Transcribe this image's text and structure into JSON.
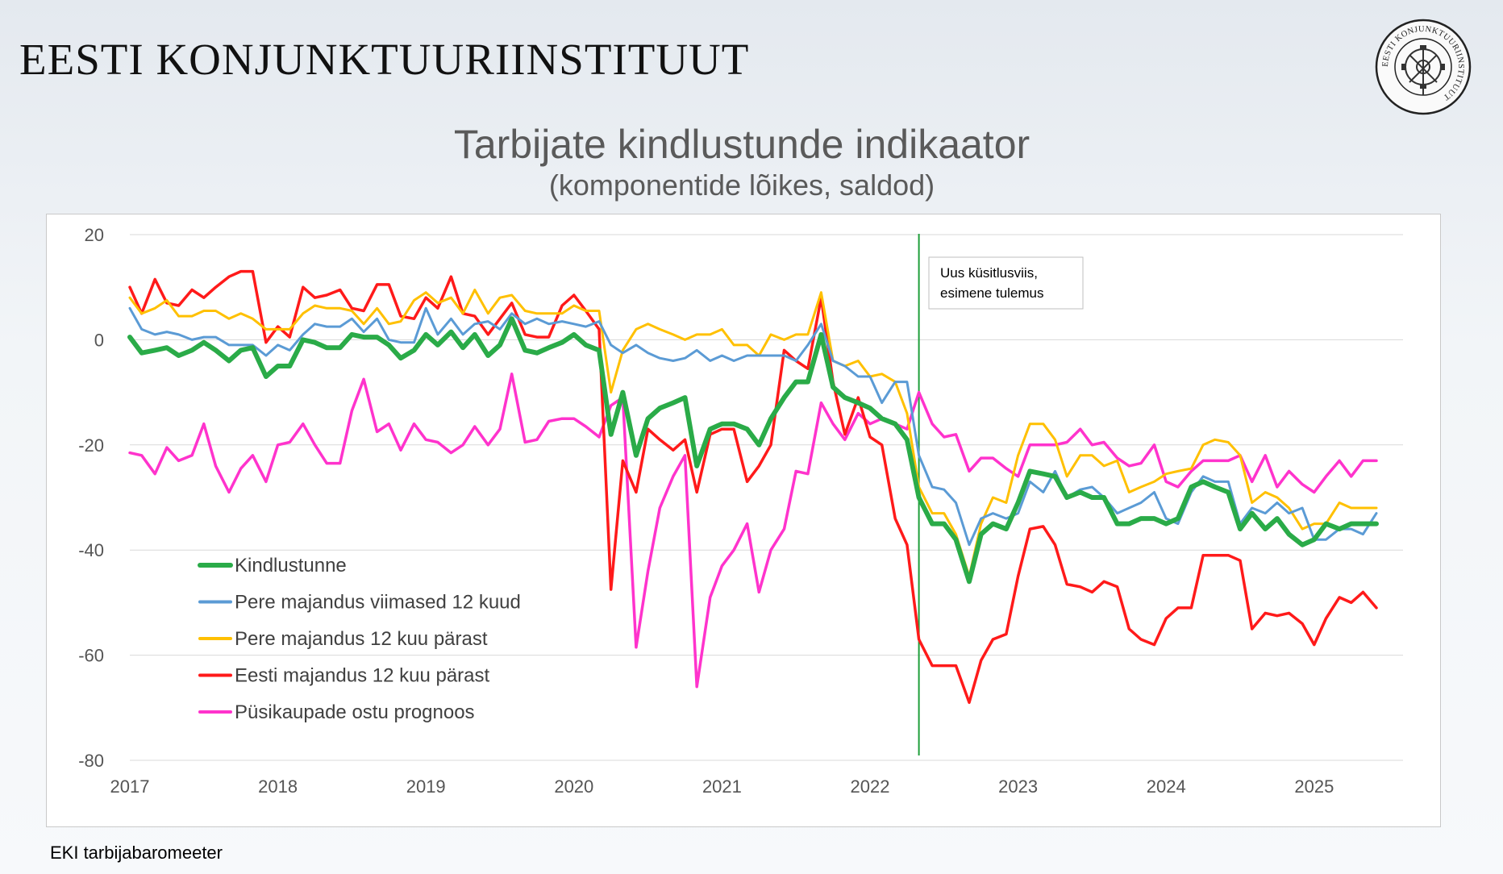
{
  "header": {
    "institute_name": "EESTI KONJUNKTUURIINSTITUUT",
    "logo_text": "EESTI KONJUNKTUURIINSTITUUT"
  },
  "footer": {
    "source": "EKI tarbijabaromeeter"
  },
  "chart_data": {
    "type": "line",
    "title": "Tarbijate kindlustunde indikaator",
    "subtitle": "(komponentide lõikes, saldod)",
    "xlabel": "",
    "ylabel": "",
    "ylim": [
      -80,
      20
    ],
    "yticks": [
      20,
      0,
      -20,
      -40,
      -60,
      -80
    ],
    "xlim": [
      2017,
      2025.6
    ],
    "xticks": [
      "2017",
      "2018",
      "2019",
      "2020",
      "2021",
      "2022",
      "2023",
      "2024",
      "2025"
    ],
    "grid": "horizontal",
    "legend_position": "lower-left",
    "annotation": {
      "x": 2022.33,
      "text_lines": [
        "Uus küsitlusviis,",
        "esimene tulemus"
      ],
      "line_color": "#1e9e3a"
    },
    "series": [
      {
        "name": "Kindlustunne",
        "color": "#2aab48",
        "width": 6,
        "x": [
          2017,
          2017.08,
          2017.17,
          2017.25,
          2017.33,
          2017.42,
          2017.5,
          2017.58,
          2017.67,
          2017.75,
          2017.83,
          2017.92,
          2018,
          2018.08,
          2018.17,
          2018.25,
          2018.33,
          2018.42,
          2018.5,
          2018.58,
          2018.67,
          2018.75,
          2018.83,
          2018.92,
          2019,
          2019.08,
          2019.17,
          2019.25,
          2019.33,
          2019.42,
          2019.5,
          2019.58,
          2019.67,
          2019.75,
          2019.83,
          2019.92,
          2020,
          2020.08,
          2020.17,
          2020.25,
          2020.33,
          2020.42,
          2020.5,
          2020.58,
          2020.67,
          2020.75,
          2020.83,
          2020.92,
          2021,
          2021.08,
          2021.17,
          2021.25,
          2021.33,
          2021.42,
          2021.5,
          2021.58,
          2021.67,
          2021.75,
          2021.83,
          2021.92,
          2022,
          2022.08,
          2022.17,
          2022.25,
          2022.33,
          2022.42,
          2022.5,
          2022.58,
          2022.67,
          2022.75,
          2022.83,
          2022.92,
          2023,
          2023.08,
          2023.17,
          2023.25,
          2023.33,
          2023.42,
          2023.5,
          2023.58,
          2023.67,
          2023.75,
          2023.83,
          2023.92,
          2024,
          2024.08,
          2024.17,
          2024.25,
          2024.33,
          2024.42,
          2024.5,
          2024.58,
          2024.67,
          2024.75,
          2024.83,
          2024.92,
          2025,
          2025.08,
          2025.17,
          2025.25,
          2025.33,
          2025.42
        ],
        "y": [
          0.5,
          -2.5,
          -2,
          -1.5,
          -3,
          -2,
          -0.5,
          -2,
          -4,
          -2,
          -1.5,
          -7,
          -5,
          -5,
          0,
          -0.5,
          -1.5,
          -1.5,
          1,
          0.5,
          0.5,
          -1,
          -3.5,
          -2,
          1,
          -1,
          1.5,
          -1.5,
          1,
          -3,
          -1,
          4,
          -2,
          -2.5,
          -1.5,
          -0.5,
          1,
          -1,
          -2,
          -18,
          -10,
          -22,
          -15,
          -13,
          -12,
          -11,
          -24,
          -17,
          -16,
          -16,
          -17,
          -20,
          -15,
          -11,
          -8,
          -8,
          1,
          -9,
          -11,
          -12,
          -13,
          -15,
          -16,
          -19,
          -30,
          -35,
          -35,
          -38,
          -46,
          -37,
          -35,
          -36,
          -31,
          -25,
          -25.5,
          -26,
          -30,
          -29,
          -30,
          -30,
          -35,
          -35,
          -34,
          -34,
          -35,
          -34,
          -28,
          -27,
          -28,
          -29,
          -36,
          -33,
          -36,
          -34,
          -37,
          -39,
          -38,
          -35,
          -36,
          -35,
          -35,
          -35
        ]
      },
      {
        "name": "Pere majandus viimased 12 kuud",
        "color": "#5b9bd5",
        "width": 3,
        "x": [
          2017,
          2017.08,
          2017.17,
          2017.25,
          2017.33,
          2017.42,
          2017.5,
          2017.58,
          2017.67,
          2017.75,
          2017.83,
          2017.92,
          2018,
          2018.08,
          2018.17,
          2018.25,
          2018.33,
          2018.42,
          2018.5,
          2018.58,
          2018.67,
          2018.75,
          2018.83,
          2018.92,
          2019,
          2019.08,
          2019.17,
          2019.25,
          2019.33,
          2019.42,
          2019.5,
          2019.58,
          2019.67,
          2019.75,
          2019.83,
          2019.92,
          2020,
          2020.08,
          2020.17,
          2020.25,
          2020.33,
          2020.42,
          2020.5,
          2020.58,
          2020.67,
          2020.75,
          2020.83,
          2020.92,
          2021,
          2021.08,
          2021.17,
          2021.25,
          2021.33,
          2021.42,
          2021.5,
          2021.58,
          2021.67,
          2021.75,
          2021.83,
          2021.92,
          2022,
          2022.08,
          2022.17,
          2022.25,
          2022.33,
          2022.42,
          2022.5,
          2022.58,
          2022.67,
          2022.75,
          2022.83,
          2022.92,
          2023,
          2023.08,
          2023.17,
          2023.25,
          2023.33,
          2023.42,
          2023.5,
          2023.58,
          2023.67,
          2023.75,
          2023.83,
          2023.92,
          2024,
          2024.08,
          2024.17,
          2024.25,
          2024.33,
          2024.42,
          2024.5,
          2024.58,
          2024.67,
          2024.75,
          2024.83,
          2024.92,
          2025,
          2025.08,
          2025.17,
          2025.25,
          2025.33,
          2025.42
        ],
        "y": [
          6,
          2,
          1,
          1.5,
          1,
          0,
          0.5,
          0.5,
          -1,
          -1,
          -1,
          -3,
          -1,
          -2,
          1,
          3,
          2.5,
          2.5,
          4,
          1.5,
          4,
          0,
          -0.5,
          -0.5,
          6,
          1,
          4,
          1,
          3,
          3.5,
          2,
          5,
          3,
          4,
          3,
          3.5,
          3,
          2.5,
          3.5,
          -1,
          -2.5,
          -1,
          -2.5,
          -3.5,
          -4,
          -3.5,
          -2,
          -4,
          -3,
          -4,
          -3,
          -3,
          -3,
          -3,
          -4,
          -1,
          3,
          -4,
          -5,
          -7,
          -7,
          -12,
          -8,
          -8,
          -22,
          -28,
          -28.5,
          -31,
          -39,
          -34,
          -33,
          -34,
          -33,
          -27,
          -29,
          -25,
          -30,
          -28.5,
          -28,
          -30,
          -33,
          -32,
          -31,
          -29,
          -34,
          -35,
          -29,
          -26,
          -27,
          -27,
          -35,
          -32,
          -33,
          -31,
          -33,
          -32,
          -38,
          -38,
          -36,
          -36,
          -37,
          -33
        ]
      },
      {
        "name": "Pere majandus 12 kuu pärast",
        "color": "#ffc000",
        "width": 3,
        "x": [
          2017,
          2017.08,
          2017.17,
          2017.25,
          2017.33,
          2017.42,
          2017.5,
          2017.58,
          2017.67,
          2017.75,
          2017.83,
          2017.92,
          2018,
          2018.08,
          2018.17,
          2018.25,
          2018.33,
          2018.42,
          2018.5,
          2018.58,
          2018.67,
          2018.75,
          2018.83,
          2018.92,
          2019,
          2019.08,
          2019.17,
          2019.25,
          2019.33,
          2019.42,
          2019.5,
          2019.58,
          2019.67,
          2019.75,
          2019.83,
          2019.92,
          2020,
          2020.08,
          2020.17,
          2020.25,
          2020.33,
          2020.42,
          2020.5,
          2020.58,
          2020.67,
          2020.75,
          2020.83,
          2020.92,
          2021,
          2021.08,
          2021.17,
          2021.25,
          2021.33,
          2021.42,
          2021.5,
          2021.58,
          2021.67,
          2021.75,
          2021.83,
          2021.92,
          2022,
          2022.08,
          2022.17,
          2022.25,
          2022.33,
          2022.42,
          2022.5,
          2022.58,
          2022.67,
          2022.75,
          2022.83,
          2022.92,
          2023,
          2023.08,
          2023.17,
          2023.25,
          2023.33,
          2023.42,
          2023.5,
          2023.58,
          2023.67,
          2023.75,
          2023.83,
          2023.92,
          2024,
          2024.08,
          2024.17,
          2024.25,
          2024.33,
          2024.42,
          2024.5,
          2024.58,
          2024.67,
          2024.75,
          2024.83,
          2024.92,
          2025,
          2025.08,
          2025.17,
          2025.25,
          2025.33,
          2025.42
        ],
        "y": [
          8,
          5,
          6,
          7.5,
          4.5,
          4.5,
          5.5,
          5.5,
          4,
          5,
          4,
          2,
          2,
          2,
          5,
          6.5,
          6,
          6,
          5.5,
          3,
          6,
          3,
          3.5,
          7.5,
          9,
          7,
          8,
          5,
          9.5,
          5,
          8,
          8.5,
          5.5,
          5,
          5,
          5,
          6.5,
          5.5,
          5.5,
          -10,
          -2,
          2,
          3,
          2,
          1,
          0,
          1,
          1,
          2,
          -1,
          -1,
          -3,
          1,
          0,
          1,
          1,
          9,
          -4,
          -5,
          -4,
          -7,
          -6.5,
          -8,
          -14,
          -28,
          -33,
          -33,
          -37,
          -45,
          -35,
          -30,
          -31,
          -22,
          -16,
          -16,
          -19,
          -26,
          -22,
          -22,
          -24,
          -23,
          -29,
          -28,
          -27,
          -25.5,
          -25,
          -24.5,
          -20,
          -19,
          -19.5,
          -22,
          -31,
          -29,
          -30,
          -32,
          -36,
          -35,
          -35,
          -31,
          -32,
          -32,
          -32
        ]
      },
      {
        "name": "Eesti majandus 12 kuu pärast",
        "color": "#ff1a1a",
        "width": 3.5,
        "x": [
          2017,
          2017.08,
          2017.17,
          2017.25,
          2017.33,
          2017.42,
          2017.5,
          2017.58,
          2017.67,
          2017.75,
          2017.83,
          2017.92,
          2018,
          2018.08,
          2018.17,
          2018.25,
          2018.33,
          2018.42,
          2018.5,
          2018.58,
          2018.67,
          2018.75,
          2018.83,
          2018.92,
          2019,
          2019.08,
          2019.17,
          2019.25,
          2019.33,
          2019.42,
          2019.5,
          2019.58,
          2019.67,
          2019.75,
          2019.83,
          2019.92,
          2020,
          2020.08,
          2020.17,
          2020.25,
          2020.33,
          2020.42,
          2020.5,
          2020.58,
          2020.67,
          2020.75,
          2020.83,
          2020.92,
          2021,
          2021.08,
          2021.17,
          2021.25,
          2021.33,
          2021.42,
          2021.5,
          2021.58,
          2021.67,
          2021.75,
          2021.83,
          2021.92,
          2022,
          2022.08,
          2022.17,
          2022.25,
          2022.33,
          2022.42,
          2022.5,
          2022.58,
          2022.67,
          2022.75,
          2022.83,
          2022.92,
          2023,
          2023.08,
          2023.17,
          2023.25,
          2023.33,
          2023.42,
          2023.5,
          2023.58,
          2023.67,
          2023.75,
          2023.83,
          2023.92,
          2024,
          2024.08,
          2024.17,
          2024.25,
          2024.33,
          2024.42,
          2024.5,
          2024.58,
          2024.67,
          2024.75,
          2024.83,
          2024.92,
          2025,
          2025.08,
          2025.17,
          2025.25,
          2025.33,
          2025.42
        ],
        "y": [
          10,
          5,
          11.5,
          7,
          6.5,
          9.5,
          8,
          10,
          12,
          13,
          13,
          -0.5,
          2.5,
          0.5,
          10,
          8,
          8.5,
          9.5,
          6,
          5.5,
          10.5,
          10.5,
          4.5,
          4,
          8,
          6,
          12,
          5,
          4.5,
          1,
          4,
          7,
          1,
          0.5,
          0.5,
          6.5,
          8.5,
          5.5,
          2,
          -47.5,
          -23,
          -29,
          -17,
          -19,
          -21,
          -19,
          -29,
          -18,
          -17,
          -17,
          -27,
          -24,
          -20,
          -2,
          -4,
          -5.5,
          8,
          -8,
          -18,
          -11,
          -18.5,
          -20,
          -34,
          -39,
          -57,
          -62,
          -62,
          -62,
          -69,
          -61,
          -57,
          -56,
          -45,
          -36,
          -35.5,
          -39,
          -46.5,
          -47,
          -48,
          -46,
          -47,
          -55,
          -57,
          -58,
          -53,
          -51,
          -51,
          -41,
          -41,
          -41,
          -42,
          -55,
          -52,
          -52.5,
          -52,
          -54,
          -58,
          -53,
          -49,
          -50,
          -48,
          -51
        ]
      },
      {
        "name": "Püsikaupade ostu prognoos",
        "color": "#ff33cc",
        "width": 3.5,
        "x": [
          2017,
          2017.08,
          2017.17,
          2017.25,
          2017.33,
          2017.42,
          2017.5,
          2017.58,
          2017.67,
          2017.75,
          2017.83,
          2017.92,
          2018,
          2018.08,
          2018.17,
          2018.25,
          2018.33,
          2018.42,
          2018.5,
          2018.58,
          2018.67,
          2018.75,
          2018.83,
          2018.92,
          2019,
          2019.08,
          2019.17,
          2019.25,
          2019.33,
          2019.42,
          2019.5,
          2019.58,
          2019.67,
          2019.75,
          2019.83,
          2019.92,
          2020,
          2020.08,
          2020.17,
          2020.25,
          2020.33,
          2020.42,
          2020.5,
          2020.58,
          2020.67,
          2020.75,
          2020.83,
          2020.92,
          2021,
          2021.08,
          2021.17,
          2021.25,
          2021.33,
          2021.42,
          2021.5,
          2021.58,
          2021.67,
          2021.75,
          2021.83,
          2021.92,
          2022,
          2022.08,
          2022.17,
          2022.25,
          2022.33,
          2022.42,
          2022.5,
          2022.58,
          2022.67,
          2022.75,
          2022.83,
          2022.92,
          2023,
          2023.08,
          2023.17,
          2023.25,
          2023.33,
          2023.42,
          2023.5,
          2023.58,
          2023.67,
          2023.75,
          2023.83,
          2023.92,
          2024,
          2024.08,
          2024.17,
          2024.25,
          2024.33,
          2024.42,
          2024.5,
          2024.58,
          2024.67,
          2024.75,
          2024.83,
          2024.92,
          2025,
          2025.08,
          2025.17,
          2025.25,
          2025.33,
          2025.42
        ],
        "y": [
          -21.5,
          -22,
          -25.5,
          -20.5,
          -23,
          -22,
          -16,
          -24,
          -29,
          -24.5,
          -22,
          -27,
          -20,
          -19.5,
          -16,
          -20,
          -23.5,
          -23.5,
          -13.5,
          -7.5,
          -17.5,
          -16,
          -21,
          -16,
          -19,
          -19.5,
          -21.5,
          -20,
          -16.5,
          -20,
          -17,
          -6.5,
          -19.5,
          -19,
          -15.5,
          -15,
          -15,
          -16.5,
          -18.5,
          -12.5,
          -11,
          -58.5,
          -44,
          -32,
          -26,
          -22,
          -66,
          -49,
          -43,
          -40,
          -35,
          -48,
          -40,
          -36,
          -25,
          -25.5,
          -12,
          -16,
          -19,
          -14,
          -16,
          -15,
          -16,
          -17,
          -10,
          -16,
          -18.5,
          -18,
          -25,
          -22.5,
          -22.5,
          -24.5,
          -26,
          -20,
          -20,
          -20,
          -19.5,
          -17,
          -20,
          -19.5,
          -22.5,
          -24,
          -23.5,
          -20,
          -27,
          -28,
          -25,
          -23,
          -23,
          -23,
          -22,
          -27,
          -22,
          -28,
          -25,
          -27.5,
          -29,
          -26,
          -23,
          -26,
          -23,
          -23
        ]
      }
    ]
  }
}
